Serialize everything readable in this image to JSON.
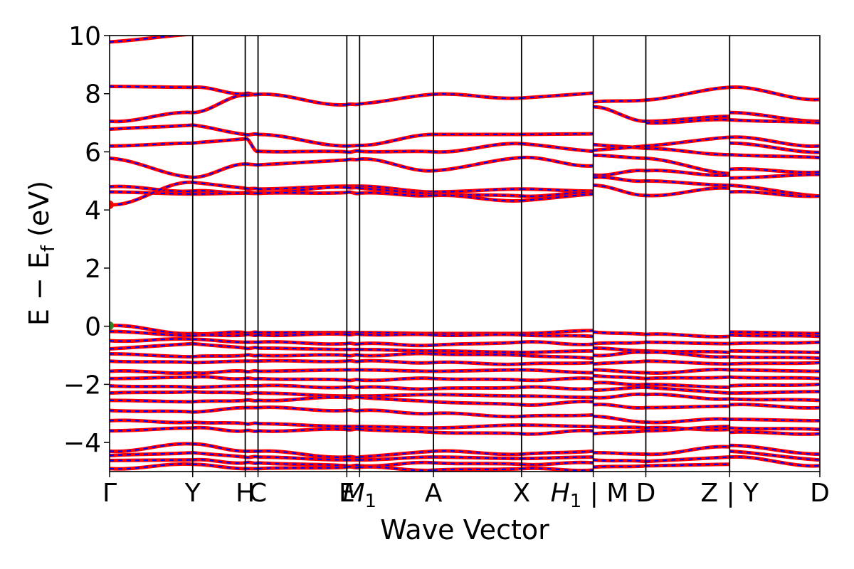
{
  "chart_data": {
    "type": "line",
    "title": "",
    "xlabel": "Wave Vector",
    "ylabel_parts": {
      "main": "E − E",
      "sub": "f",
      "unit": " (eV)"
    },
    "ylim": [
      -5,
      10
    ],
    "yticks": [
      -4,
      -2,
      0,
      2,
      4,
      6,
      8,
      10
    ],
    "ytick_labels": [
      "−4",
      "−2",
      "0",
      "2",
      "4",
      "6",
      "8",
      "10"
    ],
    "xlim": [
      0,
      1
    ],
    "kpath_positions": [
      0.0,
      0.117,
      0.191,
      0.209,
      0.334,
      0.352,
      0.456,
      0.58,
      0.681,
      0.755,
      0.873,
      1.0
    ],
    "kpath_labels": [
      {
        "text": "Γ",
        "sub": ""
      },
      {
        "text": "Y",
        "sub": ""
      },
      {
        "text": "H",
        "sub": ""
      },
      {
        "text": "C",
        "sub": ""
      },
      {
        "text": "E",
        "sub": ""
      },
      {
        "text": "M",
        "sub": "1",
        "italic": true
      },
      {
        "text": "A",
        "sub": ""
      },
      {
        "text": "X",
        "sub": ""
      },
      {
        "text": "H",
        "sub": "1",
        "italic": true,
        "suffix": " | M"
      },
      {
        "text": "D",
        "sub": ""
      },
      {
        "text": "Z | Y",
        "sub": ""
      },
      {
        "text": "D",
        "sub": ""
      }
    ],
    "series_colors": {
      "spin_up": "#ff0000",
      "spin_down": "#0000ff"
    },
    "highlight_points": [
      {
        "x": 0.0,
        "y": 4.18,
        "color": "#ff0000",
        "role": "CBM"
      },
      {
        "x": 0.0,
        "y": 0.02,
        "color": "#2e8b22",
        "role": "VBM"
      }
    ],
    "segments": [
      {
        "from": 0.0,
        "to": 0.117,
        "bands": [
          [
            9.78,
            10.05
          ],
          [
            8.25,
            8.22
          ],
          [
            7.05,
            7.35
          ],
          [
            6.78,
            6.92
          ],
          [
            6.2,
            6.3
          ],
          [
            5.78,
            5.12
          ],
          [
            4.8,
            4.65
          ],
          [
            4.62,
            4.55
          ],
          [
            4.18,
            4.95
          ],
          [
            0.02,
            -0.25
          ],
          [
            -0.18,
            -0.32
          ],
          [
            -0.5,
            -0.45
          ],
          [
            -0.78,
            -0.6
          ],
          [
            -0.95,
            -1.05
          ],
          [
            -1.2,
            -1.25
          ],
          [
            -1.55,
            -1.6
          ],
          [
            -1.8,
            -1.75
          ],
          [
            -2.05,
            -2.1
          ],
          [
            -2.3,
            -2.25
          ],
          [
            -2.55,
            -2.6
          ],
          [
            -2.9,
            -2.95
          ],
          [
            -3.25,
            -3.3
          ],
          [
            -3.6,
            -3.5
          ],
          [
            -4.3,
            -4.05
          ],
          [
            -4.45,
            -4.35
          ],
          [
            -4.62,
            -4.6
          ],
          [
            -4.9,
            -4.75
          ]
        ]
      },
      {
        "from": 0.117,
        "to": 0.191,
        "bands": [
          [
            8.22,
            8.0
          ],
          [
            7.35,
            7.95
          ],
          [
            6.92,
            6.6
          ],
          [
            6.3,
            6.45
          ],
          [
            5.12,
            5.58
          ],
          [
            4.95,
            4.75
          ],
          [
            4.65,
            4.6
          ],
          [
            4.55,
            4.58
          ],
          [
            -0.25,
            -0.22
          ],
          [
            -0.32,
            -0.3
          ],
          [
            -0.45,
            -0.55
          ],
          [
            -0.6,
            -0.75
          ],
          [
            -1.05,
            -1.0
          ],
          [
            -1.25,
            -1.2
          ],
          [
            -1.6,
            -1.55
          ],
          [
            -1.75,
            -1.8
          ],
          [
            -2.1,
            -2.05
          ],
          [
            -2.25,
            -2.3
          ],
          [
            -2.6,
            -2.55
          ],
          [
            -2.95,
            -2.8
          ],
          [
            -3.3,
            -3.35
          ],
          [
            -3.5,
            -3.6
          ],
          [
            -4.05,
            -4.3
          ],
          [
            -4.35,
            -4.5
          ],
          [
            -4.6,
            -4.7
          ],
          [
            -4.75,
            -4.9
          ]
        ]
      },
      {
        "from": 0.191,
        "to": 0.209,
        "bands": [
          [
            8.0,
            7.98
          ],
          [
            7.95,
            7.98
          ],
          [
            6.6,
            6.6
          ],
          [
            6.45,
            6.02
          ],
          [
            5.58,
            5.55
          ],
          [
            4.75,
            4.72
          ],
          [
            4.6,
            4.6
          ],
          [
            4.58,
            4.57
          ],
          [
            -0.22,
            -0.22
          ],
          [
            -0.3,
            -0.3
          ],
          [
            -0.55,
            -0.55
          ],
          [
            -0.75,
            -0.75
          ],
          [
            -1.0,
            -1.0
          ],
          [
            -1.2,
            -1.2
          ],
          [
            -1.55,
            -1.55
          ],
          [
            -1.8,
            -1.8
          ],
          [
            -2.05,
            -2.05
          ],
          [
            -2.3,
            -2.3
          ],
          [
            -2.55,
            -2.55
          ],
          [
            -2.8,
            -2.8
          ],
          [
            -3.35,
            -3.35
          ],
          [
            -3.6,
            -3.6
          ],
          [
            -4.3,
            -4.3
          ],
          [
            -4.5,
            -4.5
          ],
          [
            -4.7,
            -4.7
          ],
          [
            -4.9,
            -4.9
          ]
        ]
      },
      {
        "from": 0.209,
        "to": 0.334,
        "bands": [
          [
            7.98,
            7.62
          ],
          [
            6.6,
            6.2
          ],
          [
            6.02,
            6.0
          ],
          [
            5.55,
            5.72
          ],
          [
            4.72,
            4.82
          ],
          [
            4.6,
            4.78
          ],
          [
            4.57,
            4.6
          ],
          [
            -0.22,
            -0.22
          ],
          [
            -0.3,
            -0.28
          ],
          [
            -0.55,
            -0.6
          ],
          [
            -0.75,
            -0.8
          ],
          [
            -1.0,
            -1.0
          ],
          [
            -1.2,
            -1.2
          ],
          [
            -1.55,
            -1.5
          ],
          [
            -1.8,
            -1.85
          ],
          [
            -2.05,
            -2.1
          ],
          [
            -2.3,
            -2.4
          ],
          [
            -2.55,
            -2.45
          ],
          [
            -2.8,
            -2.9
          ],
          [
            -3.35,
            -3.45
          ],
          [
            -3.6,
            -3.55
          ],
          [
            -4.3,
            -4.5
          ],
          [
            -4.5,
            -4.6
          ],
          [
            -4.7,
            -4.8
          ],
          [
            -4.9,
            -4.85
          ]
        ]
      },
      {
        "from": 0.334,
        "to": 0.352,
        "bands": [
          [
            7.62,
            7.65
          ],
          [
            6.2,
            6.22
          ],
          [
            6.0,
            6.02
          ],
          [
            5.72,
            5.75
          ],
          [
            4.82,
            4.82
          ],
          [
            4.78,
            4.75
          ],
          [
            4.6,
            4.58
          ],
          [
            -0.22,
            -0.22
          ],
          [
            -0.28,
            -0.28
          ],
          [
            -0.6,
            -0.6
          ],
          [
            -0.8,
            -0.8
          ],
          [
            -1.0,
            -1.0
          ],
          [
            -1.2,
            -1.2
          ],
          [
            -1.5,
            -1.5
          ],
          [
            -1.85,
            -1.85
          ],
          [
            -2.1,
            -2.1
          ],
          [
            -2.4,
            -2.4
          ],
          [
            -2.45,
            -2.45
          ],
          [
            -2.9,
            -2.9
          ],
          [
            -3.45,
            -3.45
          ],
          [
            -3.55,
            -3.55
          ],
          [
            -4.5,
            -4.5
          ],
          [
            -4.6,
            -4.6
          ],
          [
            -4.8,
            -4.8
          ],
          [
            -4.85,
            -4.85
          ]
        ]
      },
      {
        "from": 0.352,
        "to": 0.456,
        "bands": [
          [
            7.65,
            7.98
          ],
          [
            6.22,
            6.6
          ],
          [
            6.02,
            6.0
          ],
          [
            5.75,
            5.35
          ],
          [
            4.82,
            4.62
          ],
          [
            4.75,
            4.55
          ],
          [
            4.58,
            4.5
          ],
          [
            -0.22,
            -0.25
          ],
          [
            -0.28,
            -0.3
          ],
          [
            -0.6,
            -0.65
          ],
          [
            -0.8,
            -0.85
          ],
          [
            -1.0,
            -0.95
          ],
          [
            -1.2,
            -1.25
          ],
          [
            -1.5,
            -1.55
          ],
          [
            -1.85,
            -1.8
          ],
          [
            -2.1,
            -2.15
          ],
          [
            -2.4,
            -2.35
          ],
          [
            -2.45,
            -2.6
          ],
          [
            -2.9,
            -3.0
          ],
          [
            -3.45,
            -3.5
          ],
          [
            -3.55,
            -3.65
          ],
          [
            -4.5,
            -4.3
          ],
          [
            -4.6,
            -4.5
          ],
          [
            -4.8,
            -4.7
          ],
          [
            -4.85,
            -4.95
          ]
        ]
      },
      {
        "from": 0.456,
        "to": 0.58,
        "bands": [
          [
            7.98,
            7.85
          ],
          [
            6.6,
            6.6
          ],
          [
            6.0,
            6.28
          ],
          [
            5.35,
            5.8
          ],
          [
            4.62,
            4.72
          ],
          [
            4.55,
            4.48
          ],
          [
            4.5,
            4.32
          ],
          [
            -0.25,
            -0.25
          ],
          [
            -0.3,
            -0.3
          ],
          [
            -0.65,
            -0.55
          ],
          [
            -0.85,
            -0.9
          ],
          [
            -0.95,
            -1.0
          ],
          [
            -1.25,
            -1.3
          ],
          [
            -1.55,
            -1.5
          ],
          [
            -1.8,
            -1.85
          ],
          [
            -2.15,
            -2.1
          ],
          [
            -2.35,
            -2.4
          ],
          [
            -2.6,
            -2.7
          ],
          [
            -3.0,
            -3.1
          ],
          [
            -3.5,
            -3.4
          ],
          [
            -3.65,
            -3.7
          ],
          [
            -4.3,
            -4.4
          ],
          [
            -4.5,
            -4.55
          ],
          [
            -4.7,
            -4.75
          ],
          [
            -4.95,
            -4.9
          ]
        ]
      },
      {
        "from": 0.58,
        "to": 0.681,
        "bands": [
          [
            7.85,
            8.02
          ],
          [
            6.6,
            6.62
          ],
          [
            6.28,
            6.02
          ],
          [
            5.8,
            5.52
          ],
          [
            4.72,
            4.65
          ],
          [
            4.48,
            4.58
          ],
          [
            4.32,
            4.55
          ],
          [
            -0.25,
            -0.15
          ],
          [
            -0.3,
            -0.35
          ],
          [
            -0.55,
            -0.62
          ],
          [
            -0.9,
            -0.85
          ],
          [
            -1.0,
            -1.1
          ],
          [
            -1.3,
            -1.25
          ],
          [
            -1.5,
            -1.6
          ],
          [
            -1.85,
            -1.8
          ],
          [
            -2.1,
            -2.15
          ],
          [
            -2.4,
            -2.45
          ],
          [
            -2.7,
            -2.6
          ],
          [
            -3.1,
            -3.05
          ],
          [
            -3.4,
            -3.45
          ],
          [
            -3.7,
            -3.6
          ],
          [
            -4.4,
            -4.3
          ],
          [
            -4.55,
            -4.5
          ],
          [
            -4.75,
            -4.7
          ],
          [
            -4.9,
            -4.95
          ]
        ]
      },
      {
        "from": 0.681,
        "to": 0.755,
        "bands": [
          [
            7.72,
            7.78
          ],
          [
            7.55,
            7.05
          ],
          [
            6.25,
            6.12
          ],
          [
            6.05,
            6.2
          ],
          [
            5.88,
            5.78
          ],
          [
            5.2,
            5.35
          ],
          [
            5.12,
            5.0
          ],
          [
            4.85,
            4.5
          ],
          [
            -0.2,
            -0.28
          ],
          [
            -0.6,
            -0.55
          ],
          [
            -0.75,
            -0.85
          ],
          [
            -1.0,
            -0.9
          ],
          [
            -1.3,
            -1.2
          ],
          [
            -1.5,
            -1.6
          ],
          [
            -1.7,
            -1.8
          ],
          [
            -1.95,
            -2.0
          ],
          [
            -2.2,
            -2.1
          ],
          [
            -2.45,
            -2.35
          ],
          [
            -2.7,
            -2.8
          ],
          [
            -3.1,
            -3.3
          ],
          [
            -3.45,
            -3.5
          ],
          [
            -3.7,
            -3.6
          ],
          [
            -4.35,
            -4.4
          ],
          [
            -4.6,
            -4.65
          ],
          [
            -4.85,
            -4.8
          ]
        ]
      },
      {
        "from": 0.755,
        "to": 0.873,
        "bands": [
          [
            7.78,
            8.22
          ],
          [
            7.05,
            7.22
          ],
          [
            7.0,
            7.1
          ],
          [
            6.2,
            6.5
          ],
          [
            6.12,
            5.9
          ],
          [
            5.78,
            5.25
          ],
          [
            5.35,
            5.2
          ],
          [
            5.0,
            4.85
          ],
          [
            4.5,
            4.75
          ],
          [
            -0.28,
            -0.35
          ],
          [
            -0.55,
            -0.6
          ],
          [
            -0.85,
            -0.9
          ],
          [
            -0.9,
            -1.05
          ],
          [
            -1.2,
            -1.3
          ],
          [
            -1.6,
            -1.5
          ],
          [
            -1.8,
            -1.75
          ],
          [
            -2.0,
            -2.1
          ],
          [
            -2.1,
            -2.3
          ],
          [
            -2.35,
            -2.5
          ],
          [
            -2.8,
            -2.75
          ],
          [
            -3.3,
            -3.2
          ],
          [
            -3.5,
            -3.55
          ],
          [
            -3.6,
            -3.45
          ],
          [
            -4.4,
            -4.15
          ],
          [
            -4.65,
            -4.5
          ],
          [
            -4.8,
            -4.75
          ]
        ]
      },
      {
        "from": 0.873,
        "to": 1.0,
        "bands": [
          [
            8.22,
            7.8
          ],
          [
            7.35,
            7.05
          ],
          [
            7.1,
            7.0
          ],
          [
            6.5,
            6.2
          ],
          [
            6.3,
            5.98
          ],
          [
            5.9,
            5.8
          ],
          [
            5.4,
            5.3
          ],
          [
            5.1,
            5.22
          ],
          [
            4.85,
            4.48
          ],
          [
            4.62,
            4.48
          ],
          [
            -0.2,
            -0.25
          ],
          [
            -0.3,
            -0.35
          ],
          [
            -0.6,
            -0.55
          ],
          [
            -0.85,
            -0.9
          ],
          [
            -1.05,
            -1.1
          ],
          [
            -1.3,
            -1.25
          ],
          [
            -1.5,
            -1.55
          ],
          [
            -1.75,
            -1.8
          ],
          [
            -2.05,
            -2.0
          ],
          [
            -2.3,
            -2.25
          ],
          [
            -2.5,
            -2.55
          ],
          [
            -2.7,
            -2.8
          ],
          [
            -3.2,
            -3.25
          ],
          [
            -3.5,
            -3.55
          ],
          [
            -3.65,
            -3.7
          ],
          [
            -4.1,
            -4.4
          ],
          [
            -4.3,
            -4.6
          ],
          [
            -4.5,
            -4.8
          ]
        ]
      }
    ]
  }
}
